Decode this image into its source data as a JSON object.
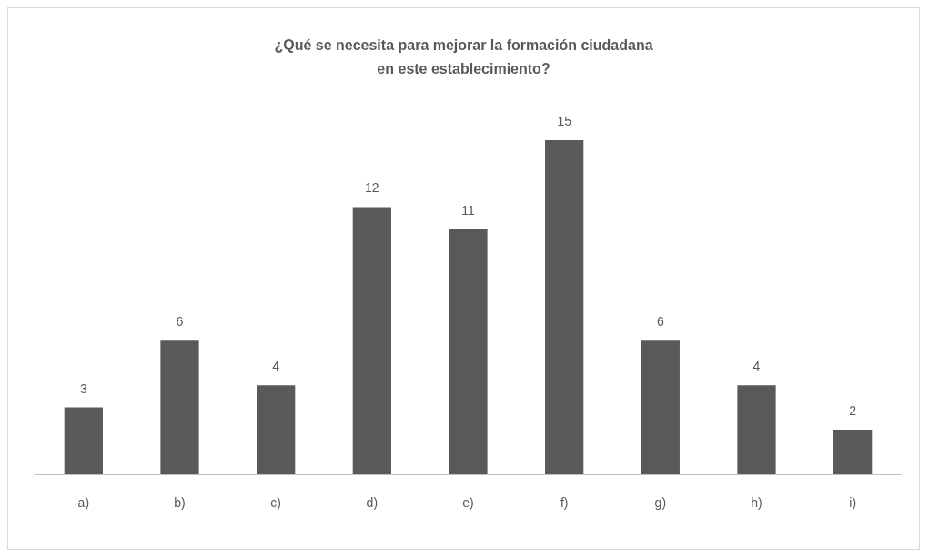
{
  "chart_data": {
    "type": "bar",
    "title": "¿Qué se necesita para mejorar la formación ciudadana\nen este establecimiento?",
    "categories": [
      "a)",
      "b)",
      "c)",
      "d)",
      "e)",
      "f)",
      "g)",
      "h)",
      "i)"
    ],
    "values": [
      3,
      6,
      4,
      12,
      11,
      15,
      6,
      4,
      2
    ],
    "color": "#595959",
    "data_labels": true
  }
}
